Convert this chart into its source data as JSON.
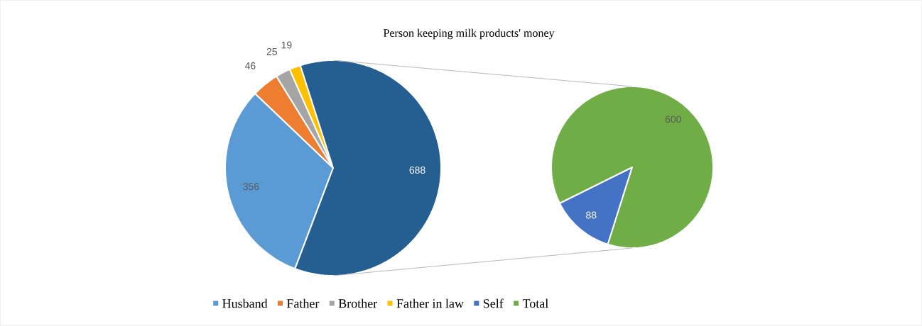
{
  "chart_data": [
    {
      "type": "pie",
      "title": "Person keeping milk products' money",
      "categories": [
        "Husband",
        "Father",
        "Brother",
        "Father in law",
        null
      ],
      "values": [
        356,
        46,
        25,
        19,
        688
      ],
      "colors": [
        "#5b9bd5",
        "#ed7d31",
        "#a5a5a5",
        "#ffc000",
        "#255e91"
      ],
      "data_labels": true,
      "legend": "bottom"
    },
    {
      "type": "pie",
      "categories": [
        "Self",
        "Total"
      ],
      "values": [
        88,
        600
      ],
      "colors": [
        "#4472c4",
        "#70ad47"
      ],
      "data_labels": true,
      "legend": "bottom"
    }
  ]
}
